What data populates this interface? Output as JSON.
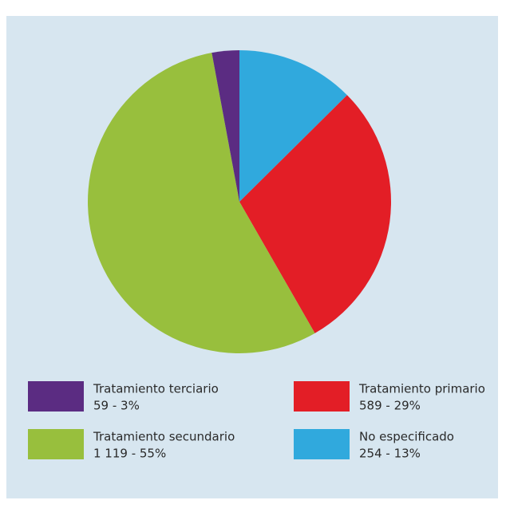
{
  "chart_data": {
    "type": "pie",
    "categories": [
      "No especificado",
      "Tratamiento primario",
      "Tratamiento secundario",
      "Tratamiento terciario"
    ],
    "values": [
      254,
      589,
      1119,
      59
    ],
    "value_labels": [
      "254 - 13%",
      "589 - 29%",
      "1 119 - 55%",
      "59 - 3%"
    ],
    "colors": [
      "#30a9dd",
      "#e31e26",
      "#98bf3d",
      "#5b2c82"
    ]
  }
}
